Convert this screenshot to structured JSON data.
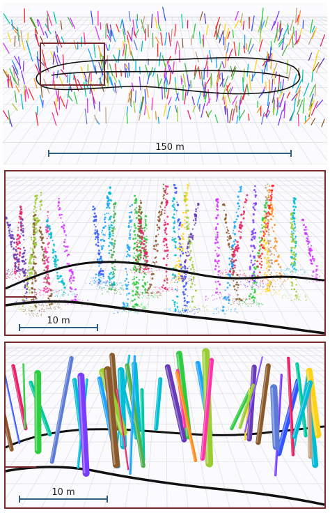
{
  "panels": {
    "overview": {
      "scale_label": "150 m"
    },
    "points": {
      "scale_label": "10 m"
    },
    "cylinders": {
      "scale_label": "10 m"
    }
  },
  "colors": {
    "frame": "#7a2a2a",
    "scale_bar": "#2f5f86",
    "trajectory": "#111111",
    "grid": "#d8d8e0",
    "palette": [
      "#ff2a2a",
      "#ff8c1a",
      "#ffd21a",
      "#2ecc40",
      "#00c8a0",
      "#1aa3ff",
      "#3355ff",
      "#7a3dff",
      "#d633ff",
      "#ff33a8",
      "#8a5a2b",
      "#9acd32",
      "#00bcd4",
      "#e91e63",
      "#5b7bd6",
      "#c0a080",
      "#4caf50",
      "#673ab7"
    ]
  }
}
